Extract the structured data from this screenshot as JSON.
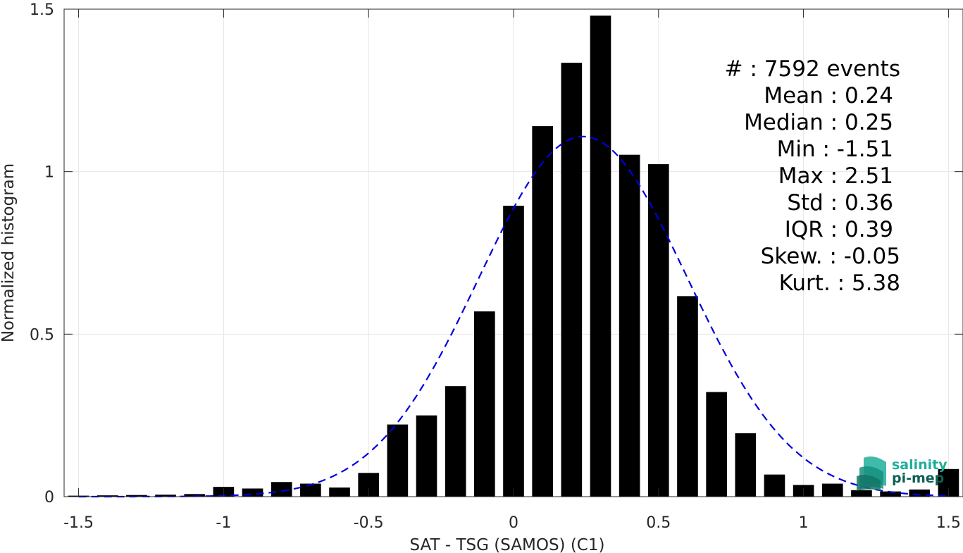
{
  "chart_data": {
    "type": "bar",
    "xlabel": "SAT - TSG (SAMOS) (C1)",
    "ylabel": "Normalized histogram",
    "xlim": [
      -1.55,
      1.55
    ],
    "ylim": [
      0,
      1.5
    ],
    "xticks": [
      -1.5,
      -1,
      -0.5,
      0,
      0.5,
      1,
      1.5
    ],
    "xtick_labels": [
      "-1.5",
      "-1",
      "-0.5",
      "0",
      "0.5",
      "1",
      "1.5"
    ],
    "yticks": [
      0,
      0.5,
      1,
      1.5
    ],
    "ytick_labels": [
      "0",
      "0.5",
      "1",
      "1.5"
    ],
    "grid": true,
    "bar_color": "#000000",
    "fit_color": "#0000e0",
    "bin_width": 0.1,
    "bins": [
      -1.5,
      -1.4,
      -1.3,
      -1.2,
      -1.1,
      -1.0,
      -0.9,
      -0.8,
      -0.7,
      -0.6,
      -0.5,
      -0.4,
      -0.3,
      -0.2,
      -0.1,
      0.0,
      0.1,
      0.2,
      0.3,
      0.4,
      0.5,
      0.6,
      0.7,
      0.8,
      0.9,
      1.0,
      1.1,
      1.2,
      1.3,
      1.4,
      1.5
    ],
    "values": [
      0.003,
      0.004,
      0.005,
      0.006,
      0.008,
      0.03,
      0.025,
      0.045,
      0.04,
      0.028,
      0.073,
      0.222,
      0.25,
      0.34,
      0.57,
      0.895,
      1.14,
      1.335,
      1.48,
      1.052,
      1.023,
      0.617,
      0.322,
      0.195,
      0.068,
      0.036,
      0.04,
      0.02,
      0.016,
      0.022,
      0.085
    ],
    "fit": {
      "type": "gaussian",
      "mean": 0.24,
      "std": 0.36,
      "style": "dashed"
    }
  },
  "stats": [
    {
      "label": "#  : 7592 events"
    },
    {
      "label": "Mean : 0.24"
    },
    {
      "label": "Median : 0.25"
    },
    {
      "label": "Min : -1.51"
    },
    {
      "label": "Max : 2.51"
    },
    {
      "label": "Std : 0.36"
    },
    {
      "label": "IQR : 0.39"
    },
    {
      "label": "Skew. : -0.05"
    },
    {
      "label": "Kurt. : 5.38"
    }
  ],
  "logo": {
    "line1": "salinity",
    "line2": "pi-mep",
    "color": "#1fae9a",
    "dark_color": "#0f5f55"
  }
}
